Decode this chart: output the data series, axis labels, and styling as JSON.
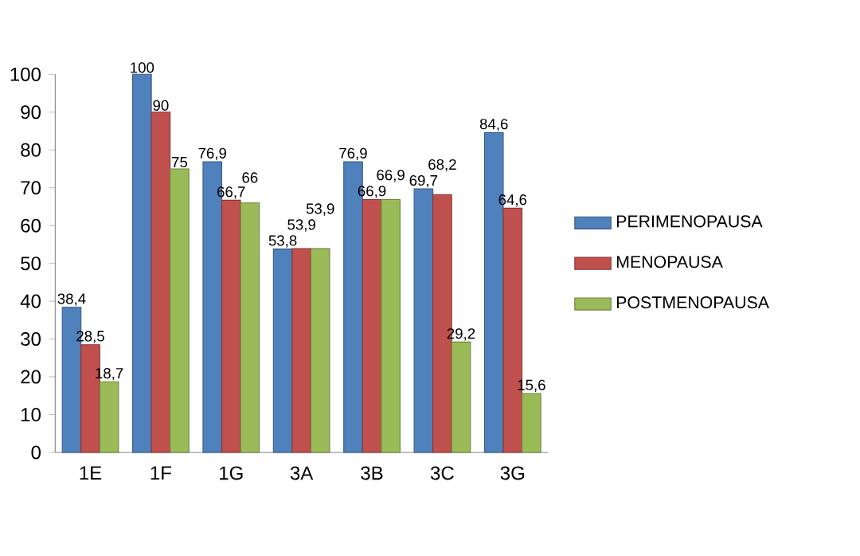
{
  "chart_data": {
    "type": "bar",
    "categories": [
      "1E",
      "1F",
      "1G",
      "3A",
      "3B",
      "3C",
      "3G"
    ],
    "series": [
      {
        "name": "PERIMENOPAUSA",
        "color": "#4f81bd",
        "values": [
          38.4,
          100,
          76.9,
          53.8,
          76.9,
          69.7,
          84.6
        ],
        "value_labels": [
          "38,4",
          "100",
          "76,9",
          "53,8",
          "76,9",
          "69,7",
          "84,6"
        ]
      },
      {
        "name": "MENOPAUSA",
        "color": "#c0504d",
        "values": [
          28.5,
          90,
          66.7,
          53.9,
          66.9,
          68.2,
          64.6
        ],
        "value_labels": [
          "28,5",
          "90",
          "66,7",
          "53,9",
          "66,9",
          "68,2",
          "64,6"
        ]
      },
      {
        "name": "POSTMENOPAUSA",
        "color": "#9bbb59",
        "values": [
          18.7,
          75,
          66,
          53.9,
          66.9,
          29.2,
          15.6
        ],
        "value_labels": [
          "18,7",
          "75",
          "66",
          "53,9",
          "66,9",
          "29,2",
          "15,6"
        ]
      }
    ],
    "ylim": [
      0,
      100
    ],
    "yticks": [
      0,
      10,
      20,
      30,
      40,
      50,
      60,
      70,
      80,
      90,
      100
    ],
    "grid": false,
    "legend": "right"
  }
}
